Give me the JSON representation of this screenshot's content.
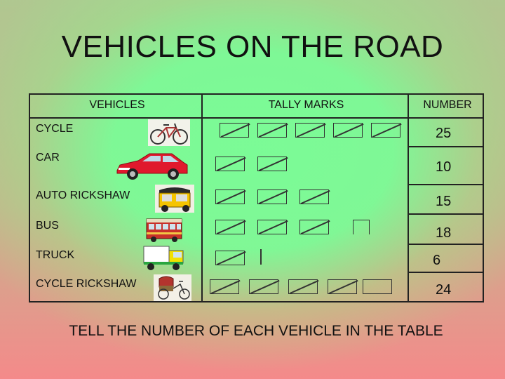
{
  "title": "VEHICLES ON THE ROAD",
  "headers": {
    "vehicles": "VEHICLES",
    "tally": "TALLY MARKS",
    "number": "NUMBER"
  },
  "rows": [
    {
      "name": "CYCLE",
      "number": "25",
      "icon": "bicycle-icon"
    },
    {
      "name": "CAR",
      "number": "10",
      "icon": "car-icon"
    },
    {
      "name": "AUTO RICKSHAW",
      "number": "15",
      "icon": "auto-rickshaw-icon"
    },
    {
      "name": "BUS",
      "number": "18",
      "icon": "bus-icon"
    },
    {
      "name": "TRUCK",
      "number": "6",
      "icon": "truck-icon"
    },
    {
      "name": "CYCLE RICKSHAW",
      "number": "24",
      "icon": "cycle-rickshaw-icon"
    }
  ],
  "footer": "TELL THE NUMBER OF EACH VEHICLE IN THE TABLE",
  "colors": {
    "background_edge": "#f48a8a",
    "background_center": "#7dfc96",
    "border": "#222222"
  }
}
